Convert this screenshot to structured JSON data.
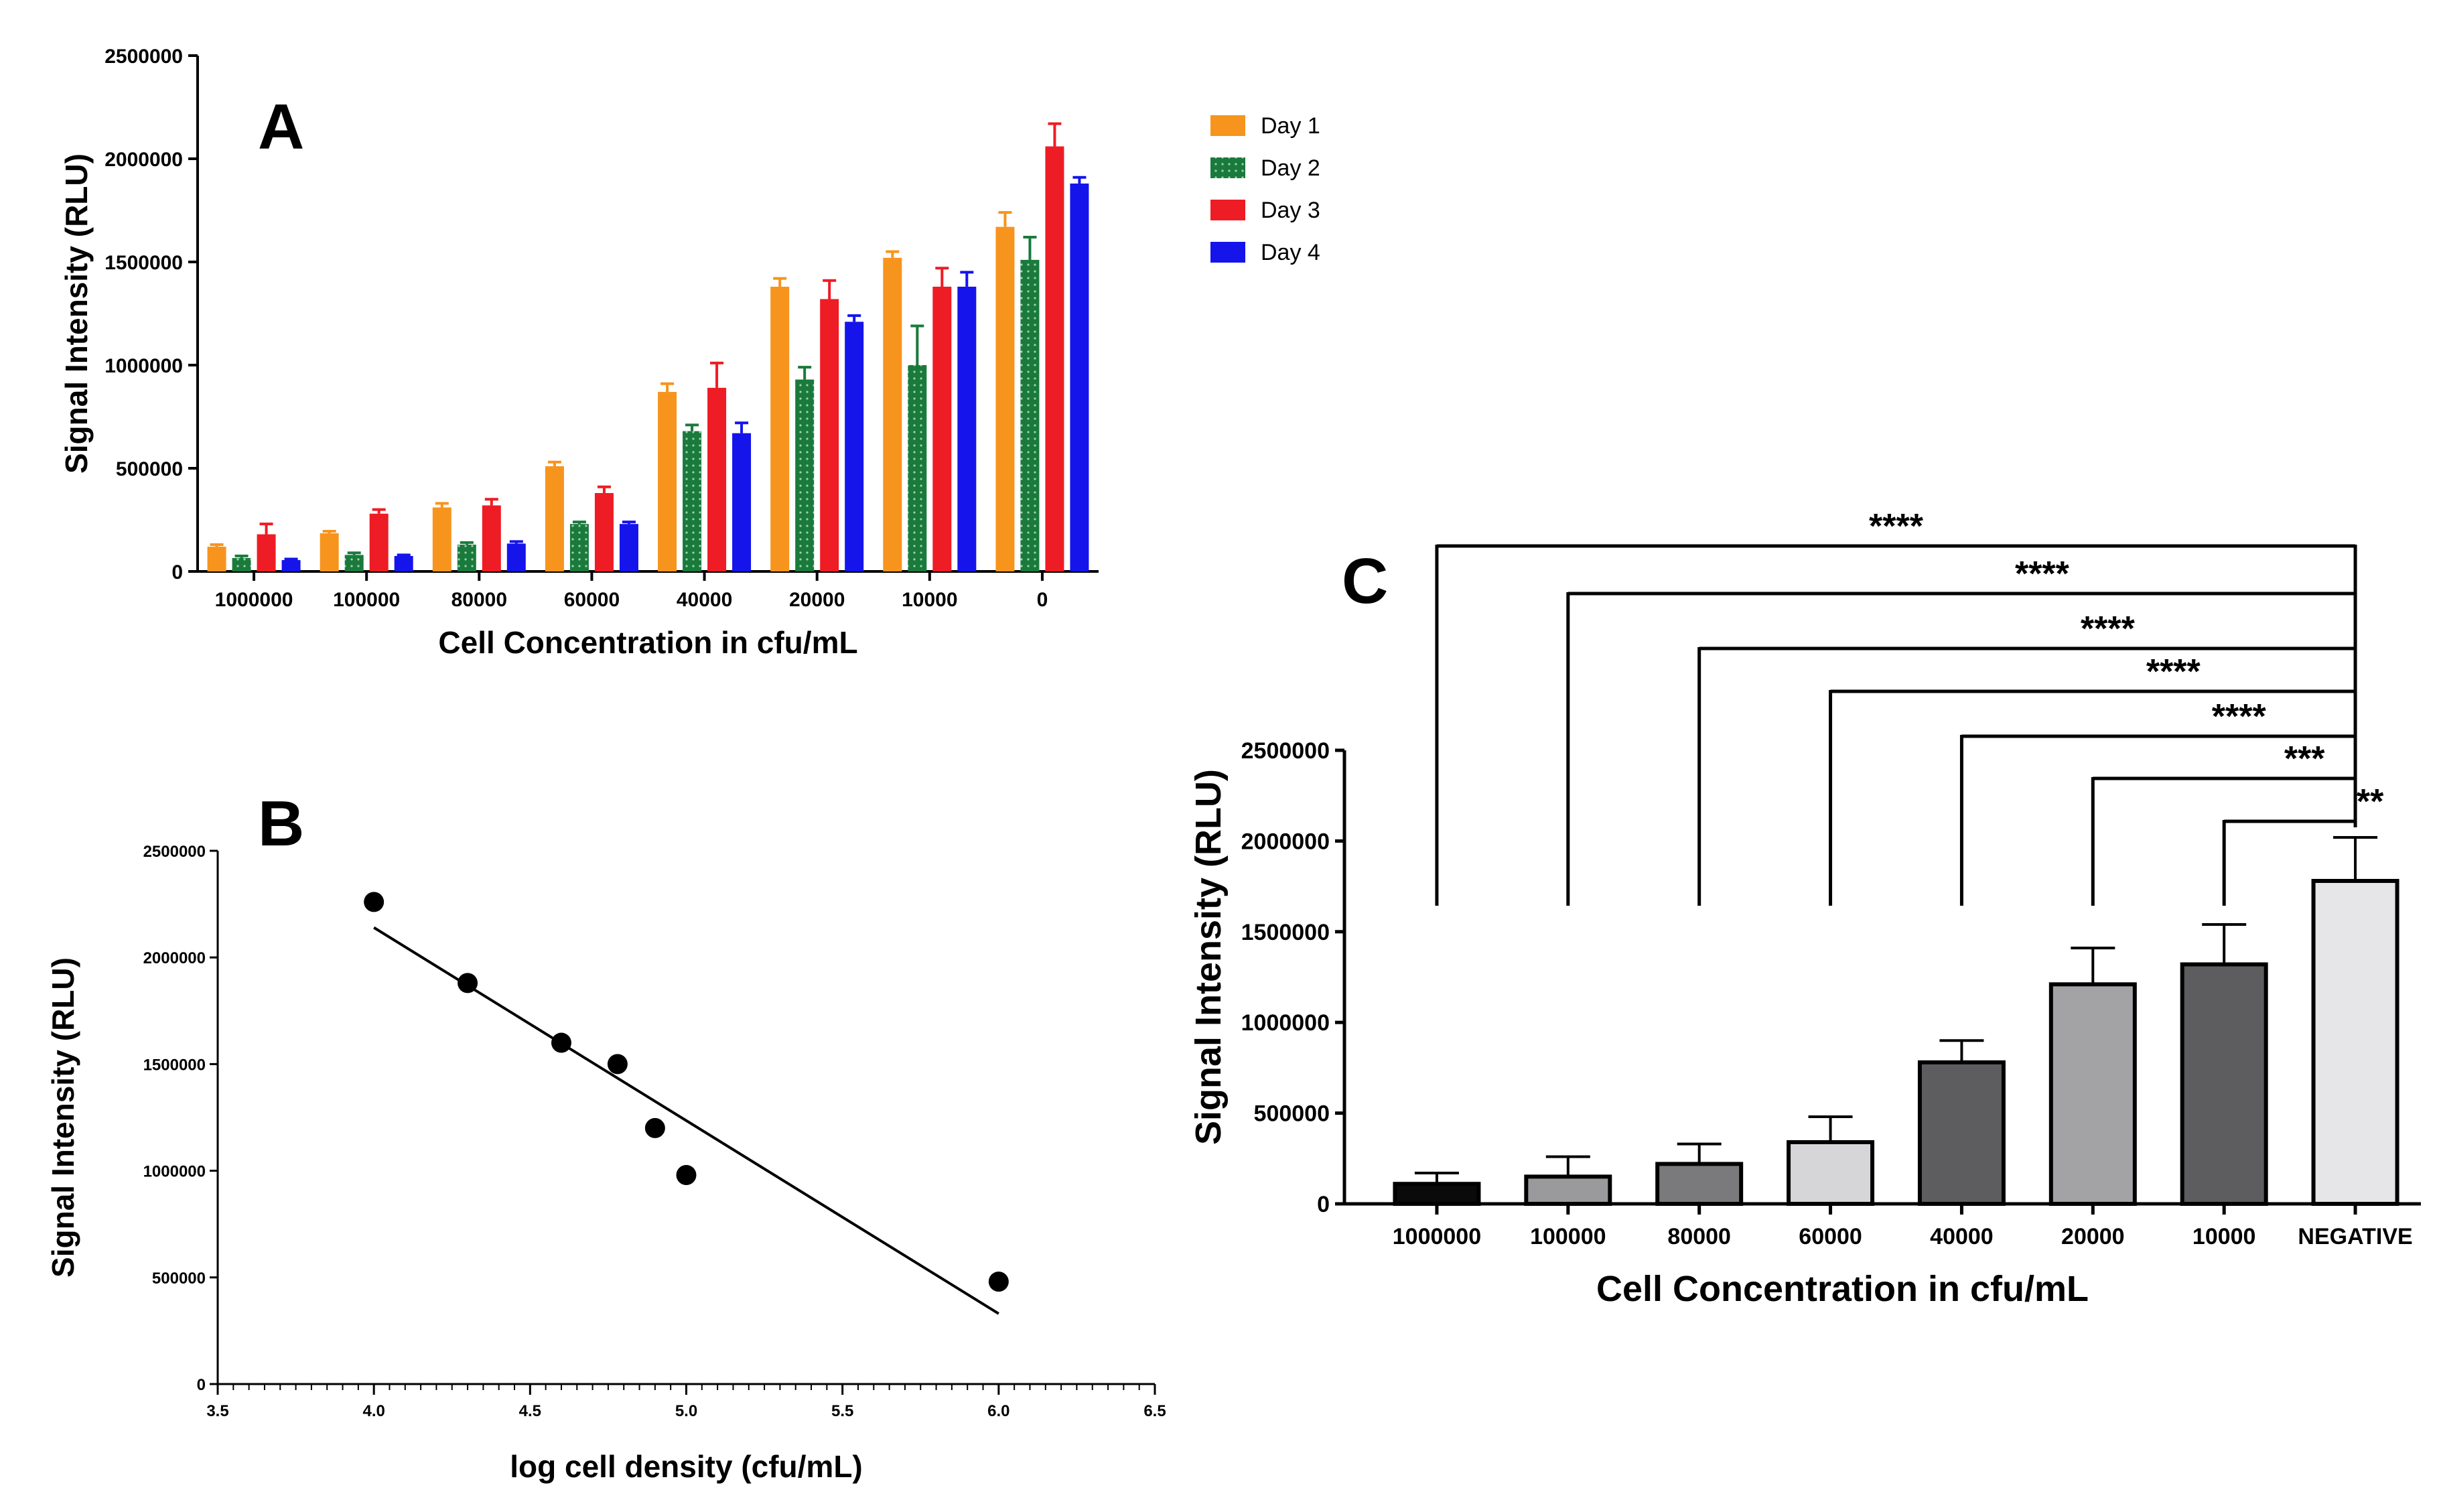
{
  "chart_data": [
    {
      "panel": "A",
      "type": "bar",
      "xlabel": "Cell Concentration in cfu/mL",
      "ylabel": "Signal Intensity (RLU)",
      "ylim": [
        0,
        2500000
      ],
      "yticks": [
        "0",
        "500000",
        "1000000",
        "1500000",
        "2000000",
        "2500000"
      ],
      "categories": [
        "1000000",
        "100000",
        "80000",
        "60000",
        "40000",
        "20000",
        "10000",
        "0"
      ],
      "legend_position": "right",
      "series": [
        {
          "name": "Day 1",
          "color": "#F7941D",
          "values": [
            120000,
            185000,
            310000,
            510000,
            870000,
            1380000,
            1520000,
            1670000
          ],
          "errors": [
            10000,
            10000,
            20000,
            20000,
            40000,
            40000,
            30000,
            70000
          ]
        },
        {
          "name": "Day 2",
          "color": "#1A7A3C",
          "pattern": "dotted",
          "values": [
            65000,
            80000,
            130000,
            230000,
            680000,
            930000,
            1000000,
            1510000
          ],
          "errors": [
            10000,
            10000,
            10000,
            10000,
            30000,
            60000,
            190000,
            110000
          ]
        },
        {
          "name": "Day 3",
          "color": "#EE1C24",
          "values": [
            180000,
            280000,
            320000,
            380000,
            890000,
            1320000,
            1380000,
            2060000
          ],
          "errors": [
            50000,
            20000,
            30000,
            30000,
            120000,
            90000,
            90000,
            110000
          ]
        },
        {
          "name": "Day 4",
          "color": "#1414EB",
          "values": [
            55000,
            75000,
            135000,
            230000,
            670000,
            1210000,
            1380000,
            1880000
          ],
          "errors": [
            5000,
            5000,
            10000,
            10000,
            50000,
            30000,
            70000,
            30000
          ]
        }
      ]
    },
    {
      "panel": "B",
      "type": "scatter",
      "xlabel": "log cell density (cfu/mL)",
      "ylabel": "Signal Intensity (RLU)",
      "xlim": [
        3.5,
        6.5
      ],
      "ylim": [
        0,
        2500000
      ],
      "xticks": [
        "3.5",
        "4.0",
        "4.5",
        "5.0",
        "5.5",
        "6.0",
        "6.5"
      ],
      "yticks": [
        "0",
        "500000",
        "1000000",
        "1500000",
        "2000000",
        "2500000"
      ],
      "points": [
        {
          "x": 4.0,
          "y": 2260000
        },
        {
          "x": 4.3,
          "y": 1880000
        },
        {
          "x": 4.6,
          "y": 1600000
        },
        {
          "x": 4.78,
          "y": 1500000
        },
        {
          "x": 4.9,
          "y": 1200000
        },
        {
          "x": 5.0,
          "y": 980000
        },
        {
          "x": 6.0,
          "y": 480000
        }
      ],
      "fit_line": {
        "x": [
          4.0,
          6.0
        ],
        "y": [
          2140000,
          330000
        ]
      }
    },
    {
      "panel": "C",
      "type": "bar",
      "xlabel": "Cell Concentration in cfu/mL",
      "ylabel": "Signal Intensity (RLU)",
      "ylim": [
        0,
        2500000
      ],
      "yticks": [
        "0",
        "500000",
        "1000000",
        "1500000",
        "2000000",
        "2500000"
      ],
      "categories": [
        "1000000",
        "100000",
        "80000",
        "60000",
        "40000",
        "20000",
        "10000",
        "NEGATIVE"
      ],
      "values": [
        110000,
        150000,
        220000,
        340000,
        780000,
        1210000,
        1320000,
        1780000
      ],
      "errors": [
        60000,
        110000,
        110000,
        140000,
        120000,
        200000,
        220000,
        240000
      ],
      "colors": [
        "#0a0a0a",
        "#9a9a9d",
        "#7a7a7c",
        "#d6d6d8",
        "#5d5d60",
        "#a3a3a6",
        "#5d5d60",
        "#e6e6e8"
      ],
      "comparisons": [
        {
          "from": "1000000",
          "to": "NEGATIVE",
          "label": "****"
        },
        {
          "from": "100000",
          "to": "NEGATIVE",
          "label": "****"
        },
        {
          "from": "80000",
          "to": "NEGATIVE",
          "label": "****"
        },
        {
          "from": "60000",
          "to": "NEGATIVE",
          "label": "****"
        },
        {
          "from": "40000",
          "to": "NEGATIVE",
          "label": "****"
        },
        {
          "from": "20000",
          "to": "NEGATIVE",
          "label": "***"
        },
        {
          "from": "10000",
          "to": "NEGATIVE",
          "label": "**"
        }
      ]
    }
  ]
}
